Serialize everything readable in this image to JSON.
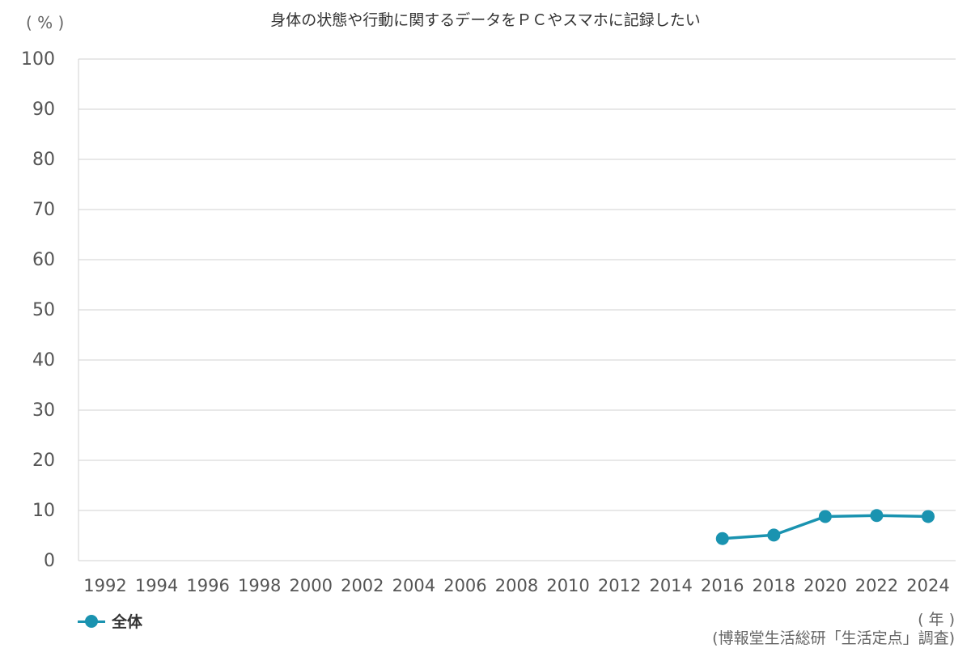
{
  "title": "身体の状態や行動に関するデータをＰＣやスマホに記録したい",
  "y_unit": "( % )",
  "x_unit": "( 年 )",
  "source": "(博報堂生活総研「生活定点」調査)",
  "legend": {
    "label": "全体"
  },
  "colors": {
    "series": "#1a93b0",
    "grid": "#d9d9d9",
    "axis_text": "#555555"
  },
  "chart_data": {
    "type": "line",
    "title": "身体の状態や行動に関するデータをＰＣやスマホに記録したい",
    "xlabel": "( 年 )",
    "ylabel": "( % )",
    "ylim": [
      0,
      100
    ],
    "yticks": [
      0,
      10,
      20,
      30,
      40,
      50,
      60,
      70,
      80,
      90,
      100
    ],
    "categories": [
      "1992",
      "1994",
      "1996",
      "1998",
      "2000",
      "2002",
      "2004",
      "2006",
      "2008",
      "2010",
      "2012",
      "2014",
      "2016",
      "2018",
      "2020",
      "2022",
      "2024"
    ],
    "grid": true,
    "legend_position": "bottom-left",
    "series": [
      {
        "name": "全体",
        "values": [
          null,
          null,
          null,
          null,
          null,
          null,
          null,
          null,
          null,
          null,
          null,
          null,
          4.4,
          5.1,
          8.8,
          9.0,
          8.8
        ]
      }
    ]
  }
}
